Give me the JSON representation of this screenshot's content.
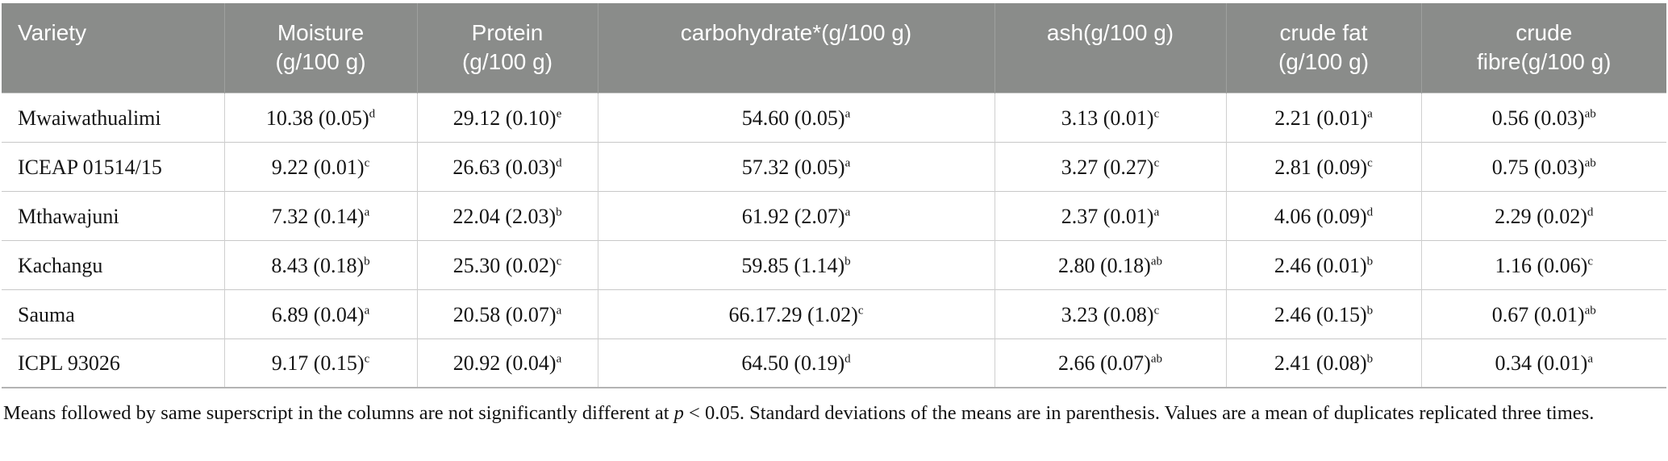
{
  "table": {
    "header": {
      "columns": [
        {
          "lines": [
            "Variety"
          ]
        },
        {
          "lines": [
            "Moisture",
            "(g/100 g)"
          ]
        },
        {
          "lines": [
            "Protein",
            "(g/100 g)"
          ]
        },
        {
          "lines": [
            "carbohydrate*(g/100 g)"
          ]
        },
        {
          "lines": [
            "ash(g/100 g)"
          ]
        },
        {
          "lines": [
            "crude fat",
            "(g/100 g)"
          ]
        },
        {
          "lines": [
            "crude",
            "fibre(g/100 g)"
          ]
        }
      ]
    },
    "rows": [
      {
        "variety": "Mwaiwathualimi",
        "values": [
          {
            "text": "10.38 (0.05)",
            "sup": "d"
          },
          {
            "text": "29.12 (0.10)",
            "sup": "e"
          },
          {
            "text": "54.60 (0.05)",
            "sup": "a"
          },
          {
            "text": "3.13 (0.01)",
            "sup": "c"
          },
          {
            "text": "2.21 (0.01)",
            "sup": "a"
          },
          {
            "text": "0.56 (0.03)",
            "sup": "ab"
          }
        ]
      },
      {
        "variety": "ICEAP 01514/15",
        "values": [
          {
            "text": "9.22 (0.01)",
            "sup": "c"
          },
          {
            "text": "26.63 (0.03)",
            "sup": "d"
          },
          {
            "text": "57.32 (0.05)",
            "sup": "a"
          },
          {
            "text": "3.27 (0.27)",
            "sup": "c"
          },
          {
            "text": "2.81 (0.09)",
            "sup": "c"
          },
          {
            "text": "0.75 (0.03)",
            "sup": "ab"
          }
        ]
      },
      {
        "variety": "Mthawajuni",
        "values": [
          {
            "text": "7.32 (0.14)",
            "sup": "a"
          },
          {
            "text": "22.04 (2.03)",
            "sup": "b"
          },
          {
            "text": "61.92 (2.07)",
            "sup": "a"
          },
          {
            "text": "2.37 (0.01)",
            "sup": "a"
          },
          {
            "text": "4.06 (0.09)",
            "sup": "d"
          },
          {
            "text": "2.29 (0.02)",
            "sup": "d"
          }
        ]
      },
      {
        "variety": "Kachangu",
        "values": [
          {
            "text": "8.43 (0.18)",
            "sup": "b"
          },
          {
            "text": "25.30 (0.02)",
            "sup": "c"
          },
          {
            "text": "59.85 (1.14)",
            "sup": "b"
          },
          {
            "text": "2.80 (0.18)",
            "sup": "ab"
          },
          {
            "text": "2.46 (0.01)",
            "sup": "b"
          },
          {
            "text": "1.16 (0.06)",
            "sup": "c"
          }
        ]
      },
      {
        "variety": "Sauma",
        "values": [
          {
            "text": "6.89 (0.04)",
            "sup": "a"
          },
          {
            "text": "20.58 (0.07)",
            "sup": "a"
          },
          {
            "text": "66.17.29 (1.02)",
            "sup": "c"
          },
          {
            "text": "3.23 (0.08)",
            "sup": "c"
          },
          {
            "text": "2.46 (0.15)",
            "sup": "b"
          },
          {
            "text": "0.67 (0.01)",
            "sup": "ab"
          }
        ]
      },
      {
        "variety": "ICPL 93026",
        "values": [
          {
            "text": "9.17 (0.15)",
            "sup": "c"
          },
          {
            "text": "20.92 (0.04)",
            "sup": "a"
          },
          {
            "text": "64.50 (0.19)",
            "sup": "d"
          },
          {
            "text": "2.66 (0.07)",
            "sup": "ab"
          },
          {
            "text": "2.41 (0.08)",
            "sup": "b"
          },
          {
            "text": "0.34 (0.01)",
            "sup": "a"
          }
        ]
      }
    ]
  },
  "footnote": {
    "part1": "Means followed by same superscript in the columns are not significantly different at ",
    "italic": "p",
    "part2": " < 0.05. Standard deviations of the means are in parenthesis. Values are a mean of duplicates replicated three times."
  },
  "colors": {
    "header_bg": "#8a8c8a",
    "header_text": "#ffffff",
    "header_divider": "#9ea09e",
    "row_border": "#c8c8c8",
    "col_border": "#cfcfcf",
    "table_bottom_border": "#b3b3b3",
    "body_text": "#141414"
  }
}
